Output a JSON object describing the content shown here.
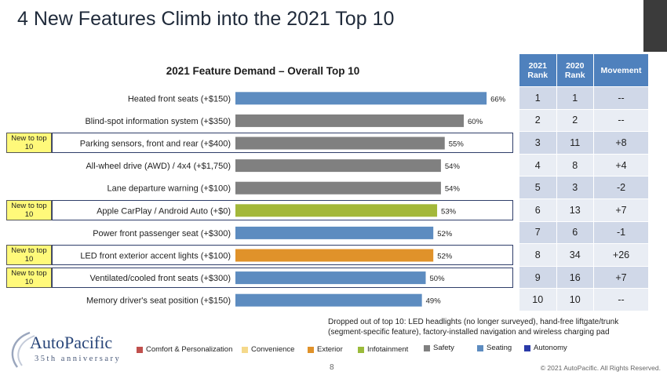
{
  "slide": {
    "title": "4 New Features Climb into the 2021 Top 10",
    "page_number": "8",
    "copyright": "© 2021 AutoPacific. All Rights Reserved.",
    "dropped_note": "Dropped out of top 10: LED headlights (no longer surveyed), hand-free liftgate/trunk (segment-specific feature), factory-installed navigation and wireless charging pad",
    "logo": {
      "name": "AutoPacific",
      "tagline": "35th anniversary"
    },
    "new_badge_label": "New to top 10"
  },
  "chart_data": {
    "type": "bar",
    "orientation": "horizontal",
    "title": "2021 Feature Demand – Overall Top 10",
    "categories": [
      "Heated front seats (+$150)",
      "Blind-spot information system (+$350)",
      "Parking sensors, front and rear (+$400)",
      "All-wheel drive (AWD) / 4x4 (+$1,750)",
      "Lane departure warning (+$100)",
      "Apple CarPlay / Android Auto (+$0)",
      "Power front passenger seat (+$300)",
      "LED front exterior accent lights (+$100)",
      "Ventilated/cooled front seats (+$300)",
      "Memory driver's seat position (+$150)"
    ],
    "values": [
      66,
      60,
      55,
      54,
      54,
      53,
      52,
      52,
      50,
      49
    ],
    "value_labels": [
      "66%",
      "60%",
      "55%",
      "54%",
      "54%",
      "53%",
      "52%",
      "52%",
      "50%",
      "49%"
    ],
    "bar_groups": [
      "Seating",
      "Safety",
      "Safety",
      "Safety",
      "Safety",
      "Infotainment",
      "Seating",
      "Exterior",
      "Seating",
      "Seating"
    ],
    "new_to_top10": [
      false,
      false,
      true,
      false,
      false,
      true,
      false,
      true,
      true,
      false
    ],
    "xlim": [
      0,
      100
    ],
    "grid": false
  },
  "legend": [
    {
      "label": "Comfort & Personalization",
      "color": "#c0504d"
    },
    {
      "label": "Convenience",
      "color": "#f5d98b"
    },
    {
      "label": "Exterior",
      "color": "#e0922a"
    },
    {
      "label": "Infotainment",
      "color": "#9bbb3b"
    },
    {
      "label": "Safety",
      "color": "#808080"
    },
    {
      "label": "Seating",
      "color": "#5d8cc0"
    },
    {
      "label": "Autonomy",
      "color": "#2a3aa8"
    }
  ],
  "group_colors": {
    "Seating": "#5d8cc0",
    "Safety": "#808080",
    "Infotainment": "#a3b83a",
    "Exterior": "#e0922a"
  },
  "rank_table": {
    "headers": [
      "2021 Rank",
      "2020 Rank",
      "Movement"
    ],
    "rows": [
      {
        "r2021": "1",
        "r2020": "1",
        "move": "--"
      },
      {
        "r2021": "2",
        "r2020": "2",
        "move": "--"
      },
      {
        "r2021": "3",
        "r2020": "11",
        "move": "+8"
      },
      {
        "r2021": "4",
        "r2020": "8",
        "move": "+4"
      },
      {
        "r2021": "5",
        "r2020": "3",
        "move": "-2"
      },
      {
        "r2021": "6",
        "r2020": "13",
        "move": "+7"
      },
      {
        "r2021": "7",
        "r2020": "6",
        "move": "-1"
      },
      {
        "r2021": "8",
        "r2020": "34",
        "move": "+26"
      },
      {
        "r2021": "9",
        "r2020": "16",
        "move": "+7"
      },
      {
        "r2021": "10",
        "r2020": "10",
        "move": "--"
      }
    ]
  }
}
